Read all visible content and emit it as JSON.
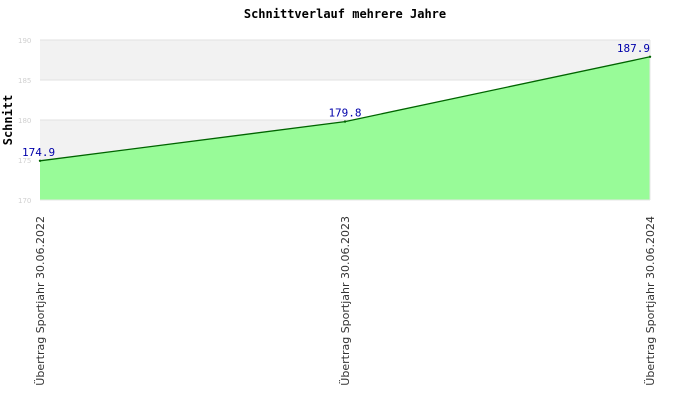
{
  "chart_data": {
    "type": "area",
    "title": "Schnittverlauf mehrere Jahre",
    "xlabel": "",
    "ylabel": "Schnitt",
    "categories": [
      "Übertrag Sportjahr 30.06.2022",
      "Übertrag Sportjahr 30.06.2023",
      "Übertrag Sportjahr 30.06.2024"
    ],
    "values": [
      174.9,
      179.8,
      187.9
    ],
    "data_labels": [
      "174.9",
      "179.8",
      "187.9"
    ],
    "ylim": [
      170,
      190
    ],
    "yticks": [
      "170",
      "175",
      "180",
      "185",
      "190"
    ],
    "grid": true,
    "colors": {
      "fill": "#98fb98",
      "line": "#006400",
      "band": "#f2f2f2",
      "label": "#0000aa"
    }
  }
}
